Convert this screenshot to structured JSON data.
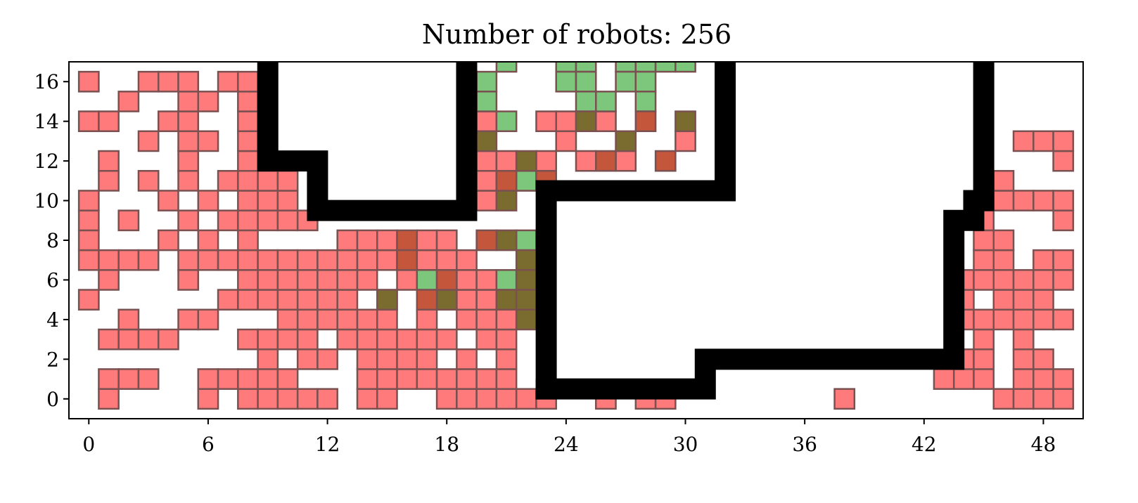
{
  "chart_data": {
    "type": "heatmap",
    "title": "Number of robots: 256",
    "xlabel": "",
    "ylabel": "",
    "xlim": [
      -1,
      50
    ],
    "ylim": [
      -1,
      17
    ],
    "x_ticks": [
      0,
      6,
      12,
      18,
      24,
      30,
      36,
      42,
      48
    ],
    "y_ticks": [
      0,
      2,
      4,
      6,
      8,
      10,
      12,
      14,
      16
    ],
    "grid": false,
    "colors": {
      "robot": "#ff7b7b",
      "goal": "#7cc77c",
      "robot_on_goal": "#7a6c2f",
      "overlap": "#c4563c",
      "wall": "#000000",
      "cell_edge": "#7a5050"
    },
    "robot_rows": {
      "16": [
        0,
        3,
        4,
        5,
        7,
        8
      ],
      "15": [
        2,
        5,
        6,
        8
      ],
      "14": [
        0,
        1,
        4,
        5,
        8,
        20
      ],
      "13": [
        3,
        5,
        6,
        8
      ],
      "12": [
        1,
        5,
        8
      ],
      "11": [
        1,
        3,
        5,
        7,
        8,
        9,
        10,
        20
      ],
      "10": [
        0,
        4,
        6,
        8,
        9,
        10,
        20
      ],
      "9": [
        0,
        2,
        5,
        7,
        8,
        9,
        10,
        11
      ],
      "8": [
        0,
        4,
        6,
        8,
        13,
        14,
        15,
        17,
        18
      ],
      "7": [
        0,
        1,
        2,
        3,
        5,
        6,
        7,
        8,
        9,
        10,
        11,
        12,
        13,
        14,
        15,
        16,
        17,
        18,
        19
      ],
      "6": [
        1,
        5,
        8,
        9,
        10,
        11,
        12,
        13,
        14,
        16,
        18,
        19,
        20
      ],
      "5": [
        0,
        7,
        8,
        9,
        10,
        11,
        12,
        13,
        15,
        18,
        19,
        20
      ],
      "4": [
        2,
        5,
        6,
        10,
        11,
        12,
        13,
        14,
        15,
        17,
        19,
        20,
        21
      ],
      "3": [
        1,
        2,
        3,
        4,
        8,
        9,
        10,
        11,
        13,
        14,
        15,
        16,
        17,
        18,
        20,
        21
      ],
      "2": [
        9,
        11,
        12,
        14,
        15,
        16,
        17,
        19,
        21
      ],
      "1": [
        1,
        2,
        3,
        6,
        7,
        8,
        9,
        10,
        14,
        15,
        16,
        17,
        18,
        19,
        20,
        21
      ],
      "0": [
        1,
        6,
        8,
        9,
        10,
        11,
        12,
        14,
        15,
        18,
        19,
        20,
        21,
        22,
        23,
        26,
        28,
        29,
        38
      ]
    },
    "robot_rows_right": {
      "13": [
        47,
        48,
        49
      ],
      "12": [
        49
      ],
      "11": [
        46
      ],
      "10": [
        46,
        47,
        48,
        49
      ],
      "9": [
        45,
        49
      ],
      "8": [
        45,
        46
      ],
      "7": [
        45,
        46,
        48,
        49
      ],
      "6": [
        44,
        45,
        46,
        47,
        48,
        49
      ],
      "5": [
        44,
        46,
        47,
        48
      ],
      "4": [
        44,
        45,
        46,
        47,
        48,
        49
      ],
      "3": [
        45,
        47
      ],
      "2": [
        44,
        45,
        47,
        48
      ],
      "1": [
        43,
        44,
        45,
        47,
        48,
        49
      ],
      "0": [
        46,
        47,
        48,
        49
      ]
    },
    "robot_upper_middle": {
      "14": [
        23,
        24,
        26
      ],
      "13": [
        24,
        30
      ],
      "12": [
        20,
        21,
        23,
        25,
        27
      ],
      "11": [
        21,
        22
      ]
    },
    "goal_cells": [
      [
        21,
        17
      ],
      [
        24,
        17
      ],
      [
        25,
        17
      ],
      [
        27,
        17
      ],
      [
        28,
        17
      ],
      [
        29,
        17
      ],
      [
        30,
        17
      ],
      [
        20,
        16
      ],
      [
        24,
        16
      ],
      [
        25,
        16
      ],
      [
        27,
        16
      ],
      [
        28,
        16
      ],
      [
        20,
        15
      ],
      [
        25,
        15
      ],
      [
        26,
        15
      ],
      [
        28,
        15
      ],
      [
        21,
        14
      ],
      [
        22,
        11
      ],
      [
        17,
        6
      ],
      [
        21,
        6
      ],
      [
        22,
        8
      ]
    ],
    "robot_on_goal_cells": [
      [
        25,
        14
      ],
      [
        30,
        14
      ],
      [
        20,
        13
      ],
      [
        27,
        13
      ],
      [
        22,
        12
      ],
      [
        21,
        10
      ],
      [
        22,
        7
      ],
      [
        22,
        6
      ],
      [
        15,
        5
      ],
      [
        18,
        5
      ],
      [
        21,
        5
      ],
      [
        22,
        5
      ],
      [
        22,
        4
      ],
      [
        21,
        8
      ]
    ],
    "overlap_cells": [
      [
        28,
        14
      ],
      [
        26,
        12
      ],
      [
        29,
        12
      ],
      [
        21,
        11
      ],
      [
        23,
        11
      ],
      [
        16,
        8
      ],
      [
        16,
        7
      ],
      [
        20,
        8
      ],
      [
        18,
        6
      ],
      [
        17,
        5
      ]
    ],
    "walls": [
      [
        [
          9,
          17
        ],
        [
          9,
          12
        ],
        [
          11.5,
          12
        ],
        [
          11.5,
          9.5
        ],
        [
          19,
          9.5
        ],
        [
          19,
          17
        ]
      ],
      [
        [
          23,
          0.5
        ],
        [
          23,
          10.5
        ],
        [
          32,
          10.5
        ],
        [
          32,
          17
        ]
      ],
      [
        [
          23,
          0.5
        ],
        [
          31,
          0.5
        ],
        [
          31,
          2
        ],
        [
          43.5,
          2
        ],
        [
          43.5,
          9
        ],
        [
          44.5,
          9
        ],
        [
          44.5,
          10
        ],
        [
          45,
          10
        ],
        [
          45,
          17
        ]
      ]
    ]
  }
}
